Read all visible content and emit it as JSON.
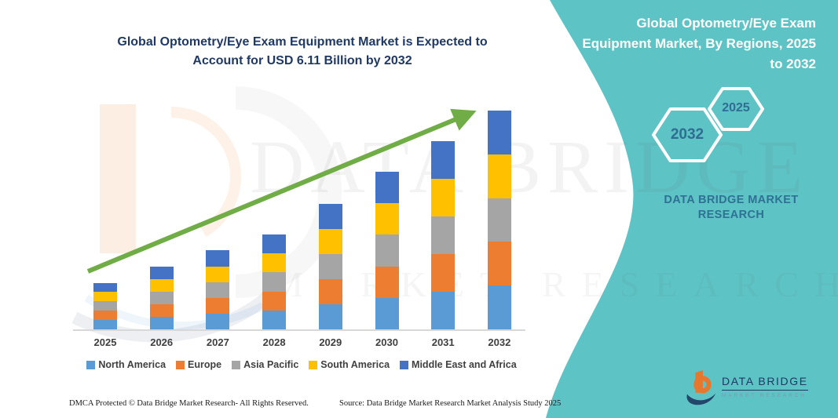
{
  "canvas": {
    "bg": "#FFFFFF",
    "teal": "#5EC3C5"
  },
  "chart": {
    "title_lines": [
      "Global Optometry/Eye Exam Equipment Market is Expected to",
      "Account for USD 6.11 Billion by 2032"
    ],
    "title_color": "#1F3864"
  },
  "chart_data": {
    "type": "bar",
    "stacked": true,
    "title": "Global Optometry/Eye Exam Equipment Market is Expected to Account for USD 6.11 Billion by 2032",
    "unit": "USD Billion",
    "categories": [
      "2025",
      "2026",
      "2027",
      "2028",
      "2029",
      "2030",
      "2031",
      "2032"
    ],
    "series": [
      {
        "name": "North America",
        "color": "#5B9BD5",
        "values": [
          0.26,
          0.35,
          0.44,
          0.53,
          0.7,
          0.88,
          1.05,
          1.22
        ]
      },
      {
        "name": "Europe",
        "color": "#ED7D31",
        "values": [
          0.26,
          0.35,
          0.44,
          0.53,
          0.7,
          0.88,
          1.05,
          1.22
        ]
      },
      {
        "name": "Asia Pacific",
        "color": "#A5A5A5",
        "values": [
          0.26,
          0.35,
          0.44,
          0.53,
          0.7,
          0.88,
          1.05,
          1.22
        ]
      },
      {
        "name": "South America",
        "color": "#FFC000",
        "values": [
          0.26,
          0.35,
          0.44,
          0.53,
          0.7,
          0.88,
          1.05,
          1.22
        ]
      },
      {
        "name": "Middle East and Africa",
        "color": "#4472C4",
        "values": [
          0.26,
          0.35,
          0.44,
          0.53,
          0.7,
          0.88,
          1.05,
          1.22
        ]
      }
    ],
    "totals": [
      1.3,
      1.75,
      2.2,
      2.65,
      3.5,
      4.4,
      5.25,
      6.1
    ],
    "annotation": "USD 6.11 Billion by 2032",
    "legend_position": "bottom",
    "grid": false,
    "ylim": [
      0,
      6.5
    ],
    "trend_arrow_color": "#70AD47",
    "bar_colors_order_bottom_to_top": [
      "North America",
      "Europe",
      "Asia Pacific",
      "South America",
      "Middle East and Africa"
    ]
  },
  "side_panel": {
    "title_lines": [
      "Global Optometry/Eye Exam",
      "Equipment Market, By Regions, 2025",
      "to 2032"
    ],
    "hexagons": [
      {
        "label": "2032"
      },
      {
        "label": "2025"
      }
    ],
    "brand_lines": [
      "DATA BRIDGE MARKET",
      "RESEARCH"
    ]
  },
  "footer": {
    "left": "DMCA Protected © Data Bridge Market Research-  All Rights Reserved.",
    "right": "Source: Data Bridge Market Research  Market Analysis Study 2025"
  },
  "logo": {
    "title": "DATA BRIDGE",
    "subtitle": "MARKET RESEARCH"
  },
  "watermark": {
    "line1": "DATA BRIDGE",
    "line2": "MARKET RESEARCH"
  }
}
